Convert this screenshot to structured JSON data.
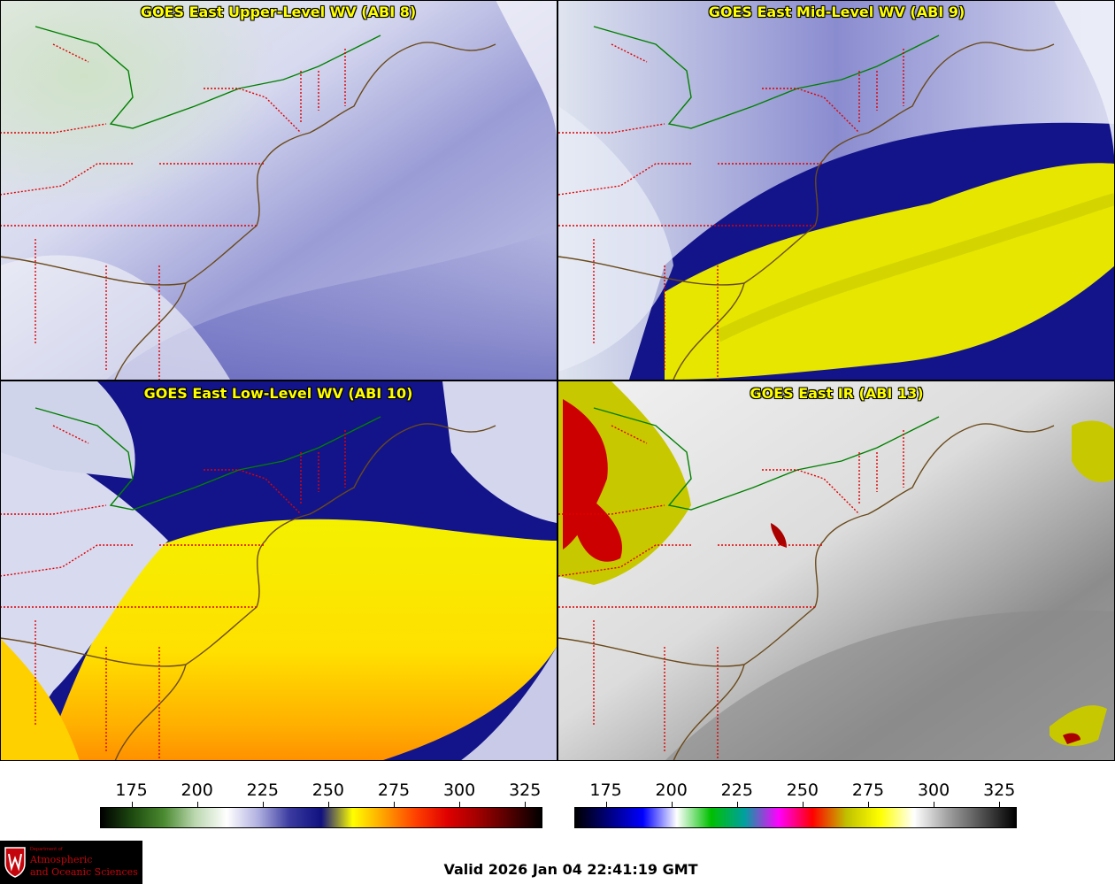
{
  "panels": [
    {
      "title": "GOES East Upper-Level WV (ABI 8)"
    },
    {
      "title": "GOES East Mid-Level WV (ABI 9)"
    },
    {
      "title": "GOES East Low-Level WV (ABI 10)"
    },
    {
      "title": "GOES East IR (ABI 13)"
    }
  ],
  "colorbar_wv": {
    "ticks": [
      "175",
      "200",
      "225",
      "250",
      "275",
      "300",
      "325"
    ],
    "range": [
      163,
      331
    ],
    "colors": [
      "#000000",
      "#1e4a10",
      "#4a8a30",
      "#bcd8b0",
      "#ffffff",
      "#b0b0e0",
      "#3a3aa0",
      "#101080",
      "#ffff00",
      "#ffa000",
      "#ff4000",
      "#e00000",
      "#a00000",
      "#500000",
      "#000000"
    ]
  },
  "colorbar_ir": {
    "ticks": [
      "175",
      "200",
      "225",
      "250",
      "275",
      "300",
      "325"
    ],
    "range": [
      163,
      331
    ],
    "colors": [
      "#000000",
      "#000080",
      "#0000ff",
      "#ffffff",
      "#00c000",
      "#00a0a0",
      "#ff00ff",
      "#ff0000",
      "#c0c000",
      "#ffff00",
      "#ffffff",
      "#a0a0a0",
      "#505050",
      "#000000"
    ]
  },
  "logo": {
    "small": "Department of",
    "line1": "Atmospheric",
    "line2": "and Oceanic Sciences"
  },
  "valid_text": "Valid 2026 Jan 04 22:41:19 GMT"
}
